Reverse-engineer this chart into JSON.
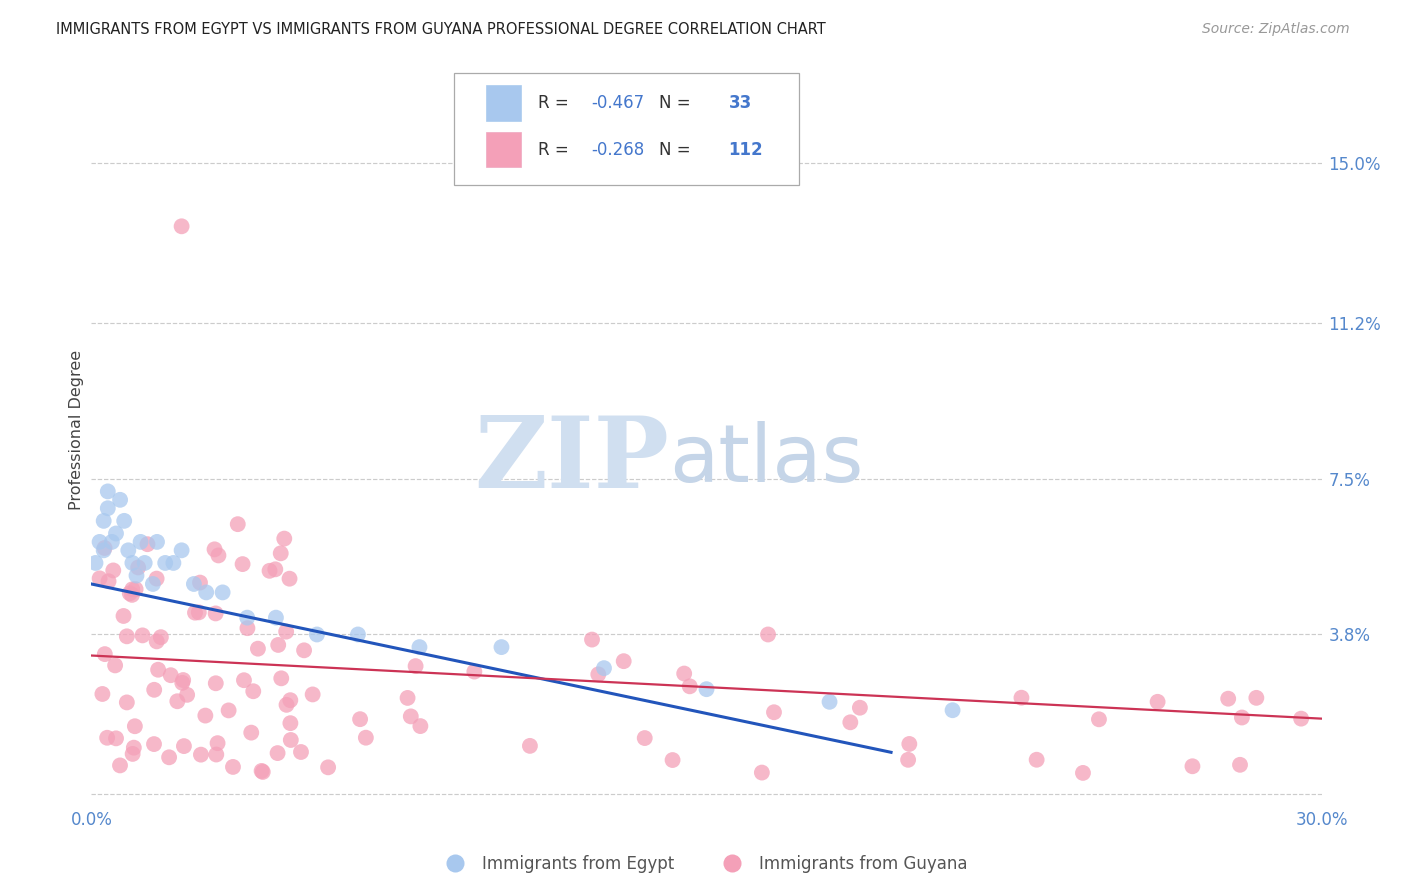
{
  "title": "IMMIGRANTS FROM EGYPT VS IMMIGRANTS FROM GUYANA PROFESSIONAL DEGREE CORRELATION CHART",
  "source": "Source: ZipAtlas.com",
  "ylabel": "Professional Degree",
  "xlim": [
    0.0,
    0.3
  ],
  "ylim": [
    -0.002,
    0.175
  ],
  "plot_ylim": [
    0.0,
    0.15
  ],
  "ytick_vals": [
    0.0,
    0.038,
    0.075,
    0.112,
    0.15
  ],
  "ytick_labels": [
    "",
    "3.8%",
    "7.5%",
    "11.2%",
    "15.0%"
  ],
  "egypt_color": "#a8c8ee",
  "guyana_color": "#f4a0b8",
  "egypt_line_color": "#2255bb",
  "guyana_line_color": "#cc3355",
  "egypt_R": -0.467,
  "egypt_N": 33,
  "guyana_R": -0.268,
  "guyana_N": 112,
  "egypt_line_x0": 0.0,
  "egypt_line_x1": 0.195,
  "egypt_line_y0": 0.05,
  "egypt_line_y1": 0.01,
  "guyana_line_x0": 0.0,
  "guyana_line_x1": 0.3,
  "guyana_line_y0": 0.033,
  "guyana_line_y1": 0.018,
  "watermark_zip_color": "#d0dff0",
  "watermark_atlas_color": "#c5d5e8",
  "bottom_labels": [
    "Immigrants from Egypt",
    "Immigrants from Guyana"
  ],
  "leg_r_color": "#333333",
  "leg_val_color": "#4477cc",
  "leg_n_color": "#333333",
  "leg_nval_color": "#4477cc",
  "grid_color": "#cccccc"
}
